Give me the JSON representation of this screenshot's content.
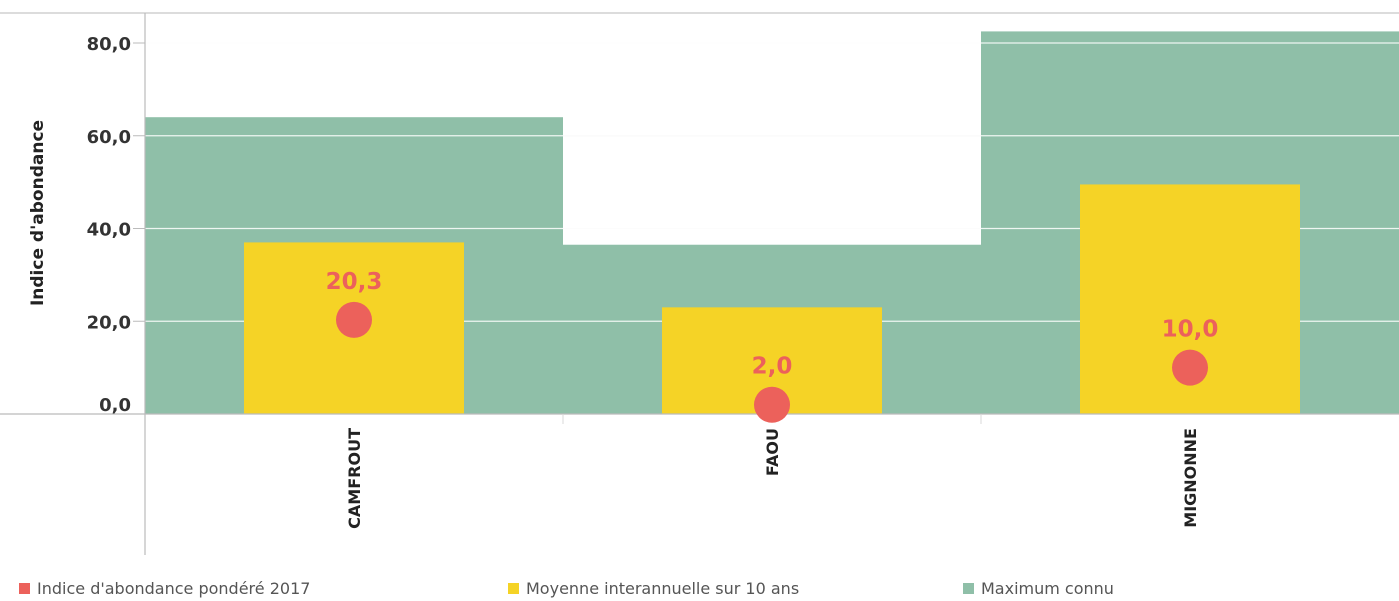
{
  "chart_data": {
    "type": "bar",
    "categories": [
      "CAMFROUT",
      "FAOU",
      "MIGNONNE"
    ],
    "series": [
      {
        "name": "Maximum connu",
        "kind": "bar-full-width",
        "color": "#8fbfa8",
        "values": [
          64.0,
          36.5,
          82.5
        ]
      },
      {
        "name": "Moyenne interannuelle sur 10 ans",
        "kind": "bar",
        "color": "#f5d326",
        "values": [
          37.0,
          23.0,
          49.5
        ]
      },
      {
        "name": "Indice d'abondance pondéré 2017",
        "kind": "point",
        "color": "#ec615b",
        "values": [
          20.3,
          2.0,
          10.0
        ],
        "labels": [
          "20,3",
          "2,0",
          "10,0"
        ]
      }
    ],
    "ylabel": "Indice d'abondance",
    "ylim": [
      0,
      80
    ],
    "yticks": [
      0,
      20,
      40,
      60,
      80
    ],
    "ytick_labels": [
      "0,0",
      "20,0",
      "40,0",
      "60,0",
      "80,0"
    ],
    "grid": true,
    "legend_position": "bottom"
  },
  "legend": [
    {
      "label": "Indice d'abondance pondéré 2017",
      "color": "#ec615b"
    },
    {
      "label": "Moyenne interannuelle sur 10 ans",
      "color": "#f5d326"
    },
    {
      "label": "Maximum connu",
      "color": "#8fbfa8"
    }
  ]
}
